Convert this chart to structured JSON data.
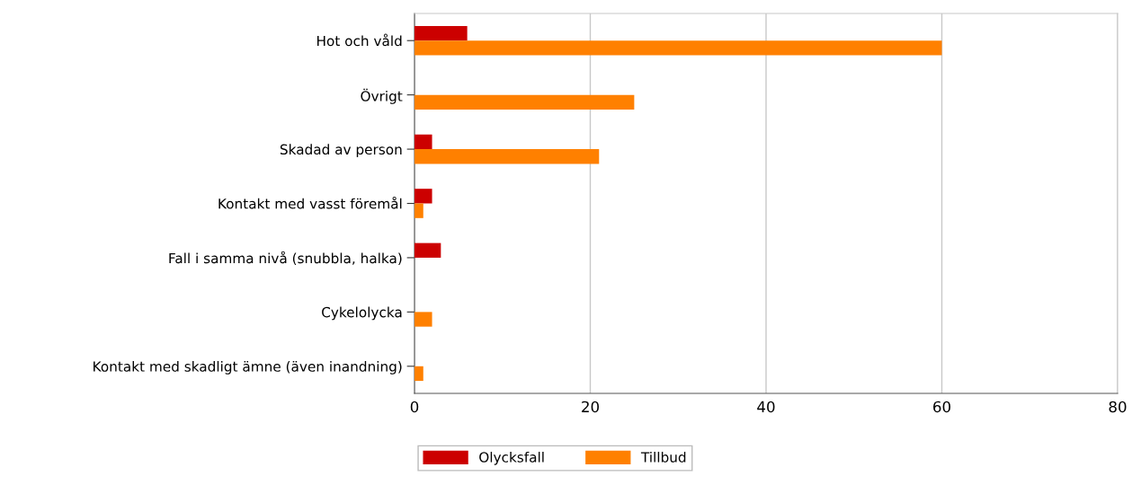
{
  "chart_data": {
    "type": "bar",
    "orientation": "horizontal",
    "categories": [
      "Hot och våld",
      "Övrigt",
      "Skadad av person",
      "Kontakt med vasst föremål",
      "Fall i samma nivå (snubbla, halka)",
      "Cykelolycka",
      "Kontakt med skadligt ämne (även inandning)"
    ],
    "series": [
      {
        "name": "Olycksfall",
        "color": "#cc0000",
        "values": [
          6,
          null,
          2,
          2,
          3,
          null,
          null
        ]
      },
      {
        "name": "Tillbud",
        "color": "#ff8000",
        "values": [
          60,
          25,
          21,
          1,
          null,
          2,
          1
        ]
      }
    ],
    "xlim": [
      0,
      80
    ],
    "xticks": [
      0,
      20,
      40,
      60,
      80
    ],
    "grid": "x",
    "legend": "bottom"
  }
}
